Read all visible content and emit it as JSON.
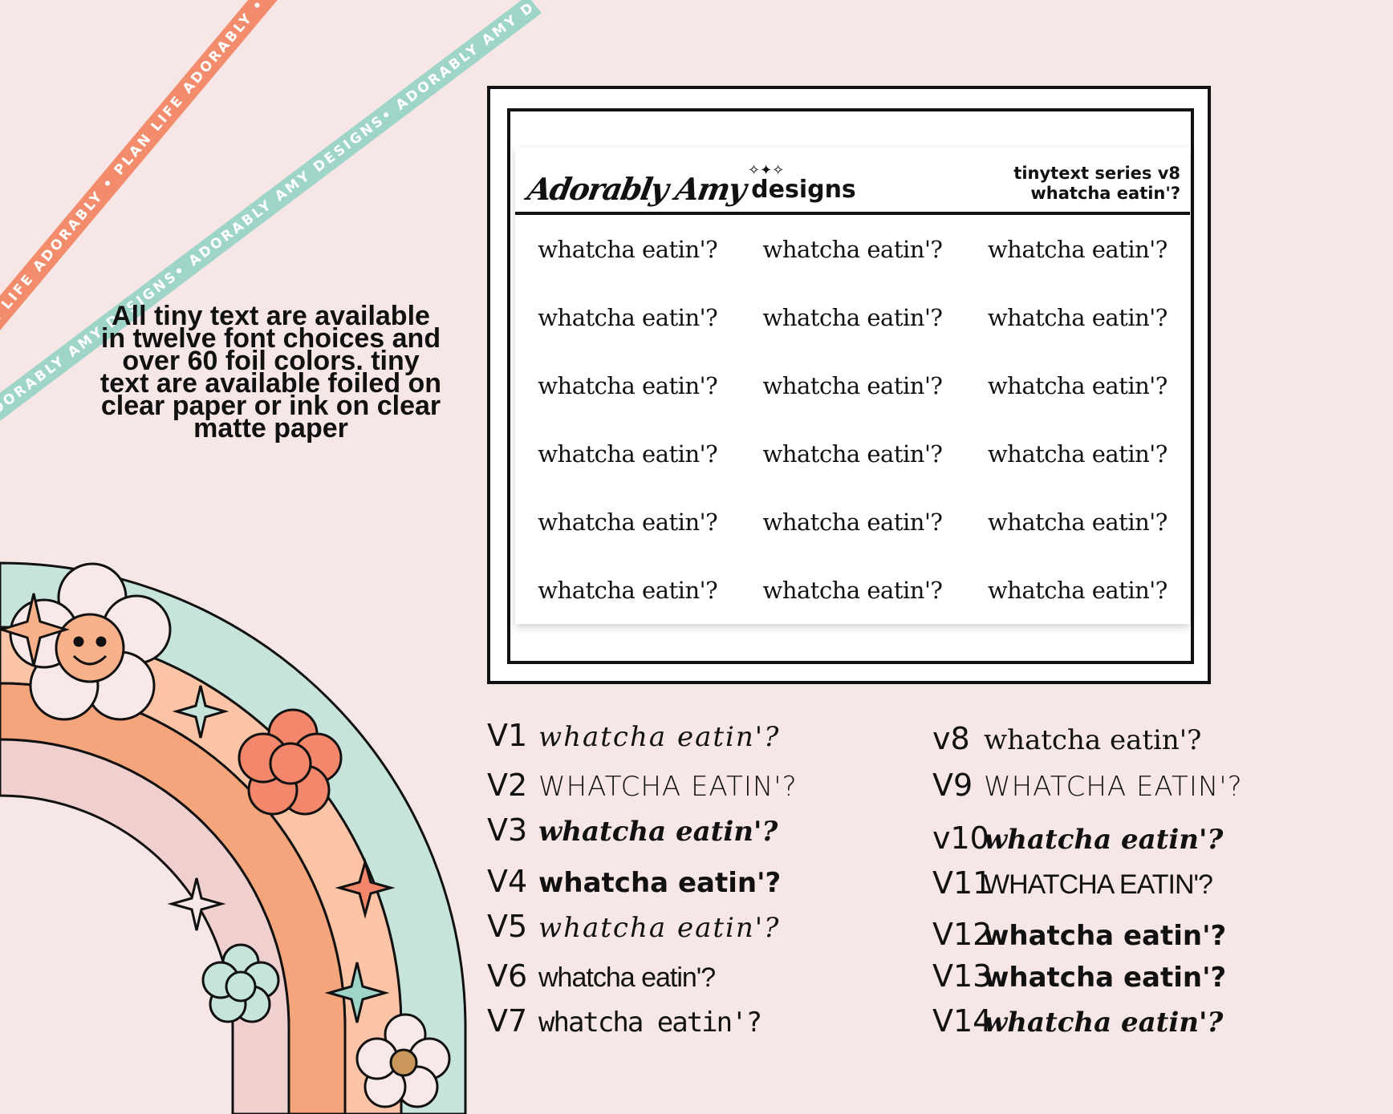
{
  "ribbons": {
    "orange": "PLAN LIFE ADORABLY • PLAN LIFE ADORABLY • PLAN LIFE ADORABLY",
    "teal": "ADORABLY AMY DESIGNS• ADORABLY AMY DESIGNS• ADORABLY AMY DESIGNS•"
  },
  "info_lines": [
    "All tiny text are available",
    "in twelve font choices and",
    "over 60 foil colors.  tiny",
    "text are available foiled on",
    "clear paper or ink on clear",
    "matte paper"
  ],
  "sheet": {
    "brand_script": "Adorably Amy",
    "brand_word": "designs",
    "series_line1": "tinytext series v8",
    "series_line2": "whatcha eatin'?",
    "cell_text": "whatcha eatin'?",
    "rows": 6,
    "columns": 3
  },
  "versions_left": [
    {
      "label": "V1",
      "text": "whatcha eatin'?",
      "style": "f-script"
    },
    {
      "label": "V2",
      "text": "whatcha eatin'?",
      "style": "f-caps"
    },
    {
      "label": "V3",
      "text": "whatcha eatin'?",
      "style": "f-bold-script"
    },
    {
      "label": "V4",
      "text": "whatcha eatin'?",
      "style": "f-bold"
    },
    {
      "label": "V5",
      "text": "whatcha eatin'?",
      "style": "f-script"
    },
    {
      "label": "V6",
      "text": "whatcha eatin'?",
      "style": "f-cond"
    },
    {
      "label": "V7",
      "text": "whatcha eatin'?",
      "style": "f-thin"
    }
  ],
  "versions_right": [
    {
      "label": "v8",
      "text": "whatcha eatin'?",
      "style": "f-serif"
    },
    {
      "label": "V9",
      "text": "whatcha eatin'?",
      "style": "f-caps"
    },
    {
      "label": "v10",
      "text": "whatcha eatin'?",
      "style": "f-bold-script"
    },
    {
      "label": "V11",
      "text": "WHATCHA EATIN'?",
      "style": "f-cond"
    },
    {
      "label": "V12",
      "text": "whatcha eatin'?",
      "style": "f-bold"
    },
    {
      "label": "V13",
      "text": "whatcha eatin'?",
      "style": "f-bold"
    },
    {
      "label": "V14",
      "text": "whatcha eatin'?",
      "style": "f-bold-script"
    }
  ],
  "colors": {
    "background": "#f6e6e6",
    "ribbon_orange": "#f28c6c",
    "ribbon_teal": "#9fd5c8",
    "rainbow_teal": "#c6e3dc",
    "rainbow_peach": "#fbc4a6",
    "rainbow_orange": "#f5a57b",
    "rainbow_pink": "#f0cfcf"
  }
}
